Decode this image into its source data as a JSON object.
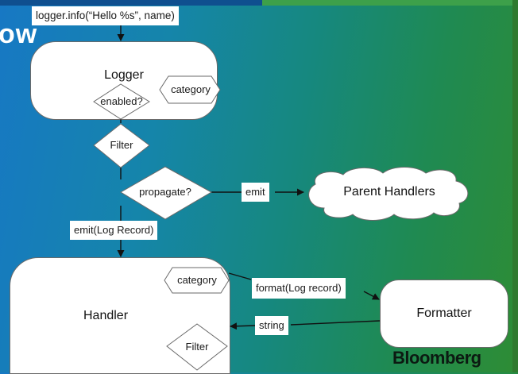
{
  "slide": {
    "title": "ow",
    "watermark": "Bloomberg",
    "colors": {
      "background_left": "#1778c4",
      "background_right": "#2e8c34",
      "node_fill": "#ffffff",
      "arrow": "#111111"
    }
  },
  "diagram": {
    "call_label": "logger.info(“Hello %s”, name)",
    "nodes": {
      "logger": "Logger",
      "logger_category": "category",
      "logger_enabled": "enabled?",
      "filter": "Filter",
      "propagate": "propagate?",
      "parent_handlers": "Parent Handlers",
      "handler": "Handler",
      "handler_category": "category",
      "handler_filter": "Filter",
      "formatter": "Formatter"
    },
    "edges": {
      "emit": "emit",
      "emit_record": "emit(Log Record)",
      "format": "format(Log record)",
      "string": "string"
    }
  }
}
